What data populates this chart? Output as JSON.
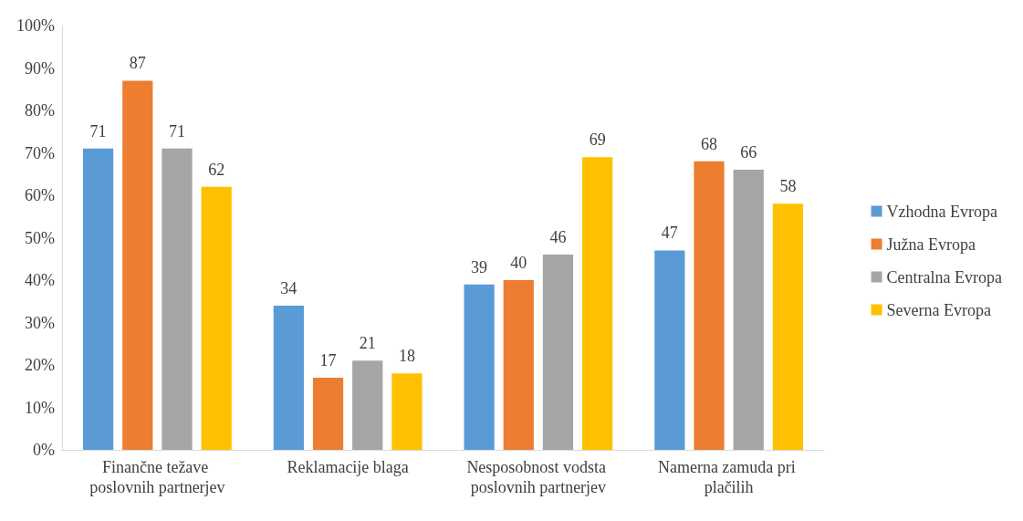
{
  "chart_data": {
    "type": "bar",
    "categories": [
      "Finančne težave poslovnih partnerjev",
      "Reklamacije blaga",
      "Nesposobnost vodsta poslovnih partnerjev",
      "Namerna zamuda pri plačilih"
    ],
    "series": [
      {
        "name": "Vzhodna Evropa",
        "color": "#5b9bd5",
        "values": [
          71,
          34,
          39,
          47
        ]
      },
      {
        "name": "Južna Evropa",
        "color": "#ed7d31",
        "values": [
          87,
          17,
          40,
          68
        ]
      },
      {
        "name": "Centralna Evropa",
        "color": "#a5a5a5",
        "values": [
          71,
          21,
          46,
          66
        ]
      },
      {
        "name": "Severna Evropa",
        "color": "#ffc000",
        "values": [
          62,
          18,
          69,
          58
        ]
      }
    ],
    "ylim": [
      0,
      100
    ],
    "yticks": [
      {
        "value": 0,
        "label": "0%"
      },
      {
        "value": 10,
        "label": "10%"
      },
      {
        "value": 20,
        "label": "20%"
      },
      {
        "value": 30,
        "label": "30%"
      },
      {
        "value": 40,
        "label": "40%"
      },
      {
        "value": 50,
        "label": "50%"
      },
      {
        "value": 60,
        "label": "60%"
      },
      {
        "value": 70,
        "label": "70%"
      },
      {
        "value": 80,
        "label": "80%"
      },
      {
        "value": 90,
        "label": "90%"
      },
      {
        "value": 100,
        "label": "100%"
      }
    ],
    "data_labels": true,
    "legend": "right",
    "grid": false
  }
}
